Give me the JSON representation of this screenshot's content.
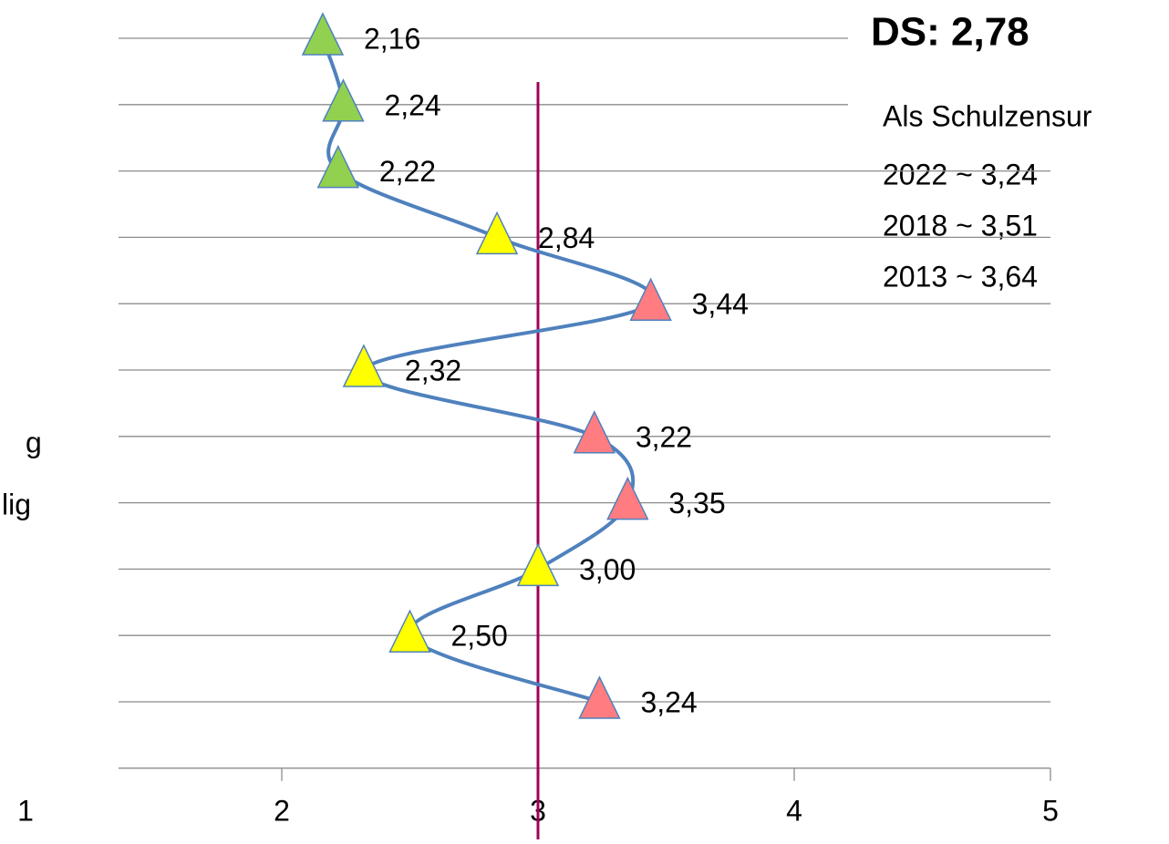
{
  "chart_data": {
    "type": "line",
    "categories": [
      null,
      null,
      null,
      null,
      null,
      null,
      null,
      null,
      null,
      null,
      null
    ],
    "values": [
      2.16,
      2.24,
      2.22,
      2.84,
      3.44,
      2.32,
      3.22,
      3.35,
      3.0,
      2.5,
      3.24
    ],
    "value_labels": [
      "2,16",
      "2,24",
      "2,22",
      "2,84",
      "3,44",
      "2,32",
      "3,22",
      "3,35",
      "3,00",
      "2,50",
      "3,24"
    ],
    "point_colors": [
      "#92d050",
      "#92d050",
      "#92d050",
      "#ffff00",
      "#ff7c80",
      "#ffff00",
      "#ff7c80",
      "#ff7c80",
      "#ffff00",
      "#ffff00",
      "#ff7c80"
    ],
    "line_color": "#4f81bd",
    "xlim": [
      1,
      5
    ],
    "xticks": [
      1,
      2,
      3,
      4,
      5
    ],
    "reference_line": 3,
    "reference_color": "#a0005a",
    "grid": true,
    "annotations": {
      "score": "DS: 2,78",
      "heading": "Als Schulzensur",
      "lines": [
        "2022 ~ 3,24",
        "2018 ~ 3,51",
        "2013 ~ 3,64"
      ],
      "left": [
        "g",
        "lig"
      ]
    }
  }
}
